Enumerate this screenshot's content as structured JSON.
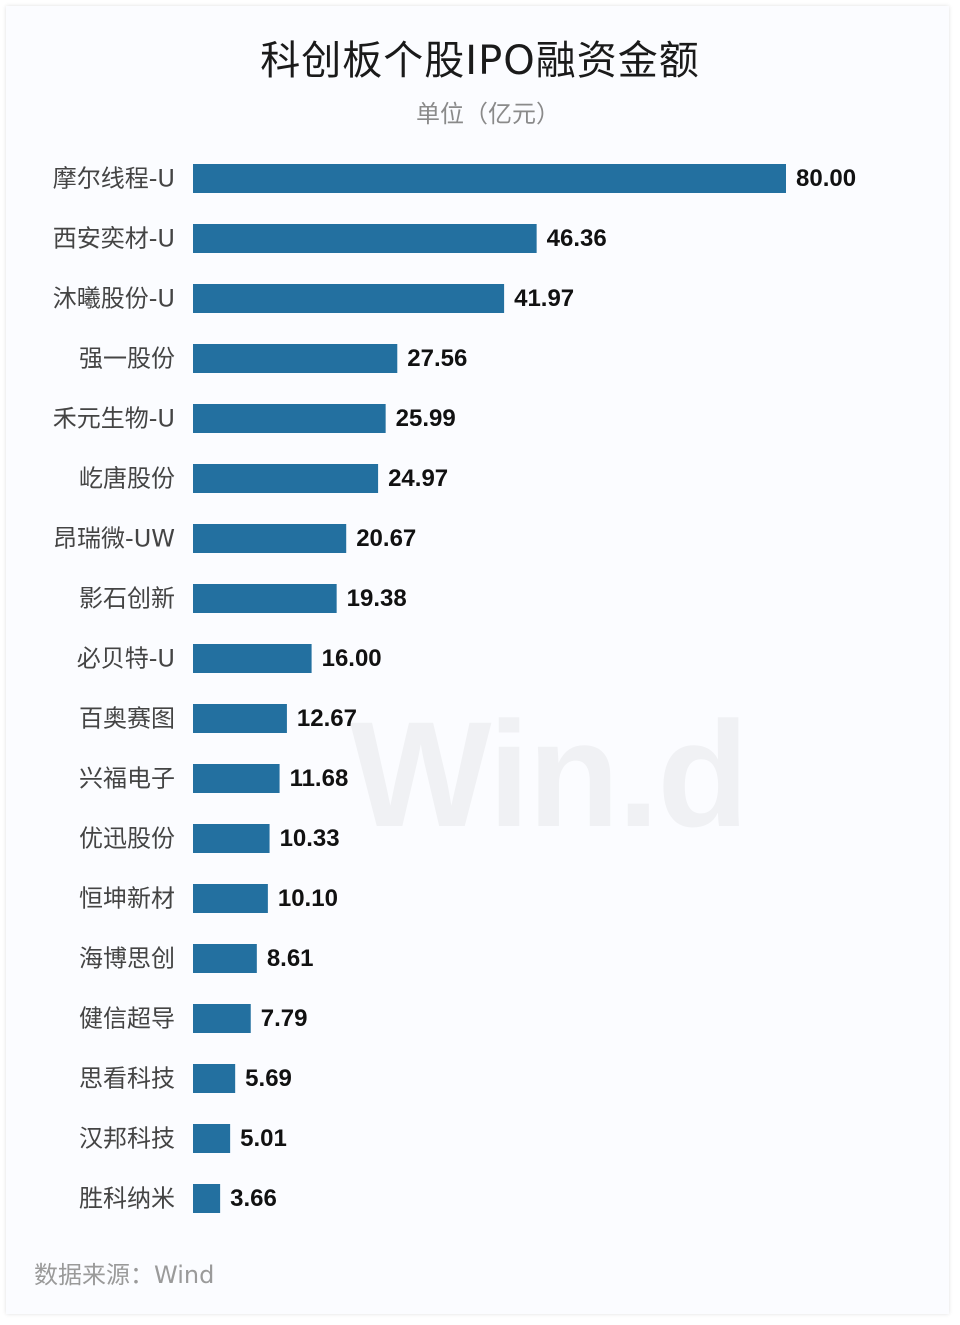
{
  "header": {
    "title": "科创板个股IPO融资金额",
    "unit": "单位（亿元）"
  },
  "watermark": "Win.d",
  "footer": {
    "source": "数据来源：Wind"
  },
  "colors": {
    "bar": "#2370a0",
    "value_label": "#111111",
    "category_label": "#444444"
  },
  "chart_data": {
    "type": "bar",
    "orientation": "horizontal",
    "title": "科创板个股IPO融资金额",
    "subtitle": "单位（亿元）",
    "categories": [
      "摩尔线程-U",
      "西安奕材-U",
      "沐曦股份-U",
      "强一股份",
      "禾元生物-U",
      "屹唐股份",
      "昂瑞微-UW",
      "影石创新",
      "必贝特-U",
      "百奥赛图",
      "兴福电子",
      "优迅股份",
      "恒坤新材",
      "海博思创",
      "健信超导",
      "思看科技",
      "汉邦科技",
      "胜科纳米"
    ],
    "values": [
      80.0,
      46.36,
      41.97,
      27.56,
      25.99,
      24.97,
      20.67,
      19.38,
      16.0,
      12.67,
      11.68,
      10.33,
      10.1,
      8.61,
      7.79,
      5.69,
      5.01,
      3.66
    ],
    "value_labels": [
      "80.00",
      "46.36",
      "41.97",
      "27.56",
      "25.99",
      "24.97",
      "20.67",
      "19.38",
      "16.00",
      "12.67",
      "11.68",
      "10.33",
      "10.10",
      "8.61",
      "7.79",
      "5.69",
      "5.01",
      "3.66"
    ],
    "xlim": [
      0,
      80
    ],
    "grid": false,
    "legend": "none"
  }
}
